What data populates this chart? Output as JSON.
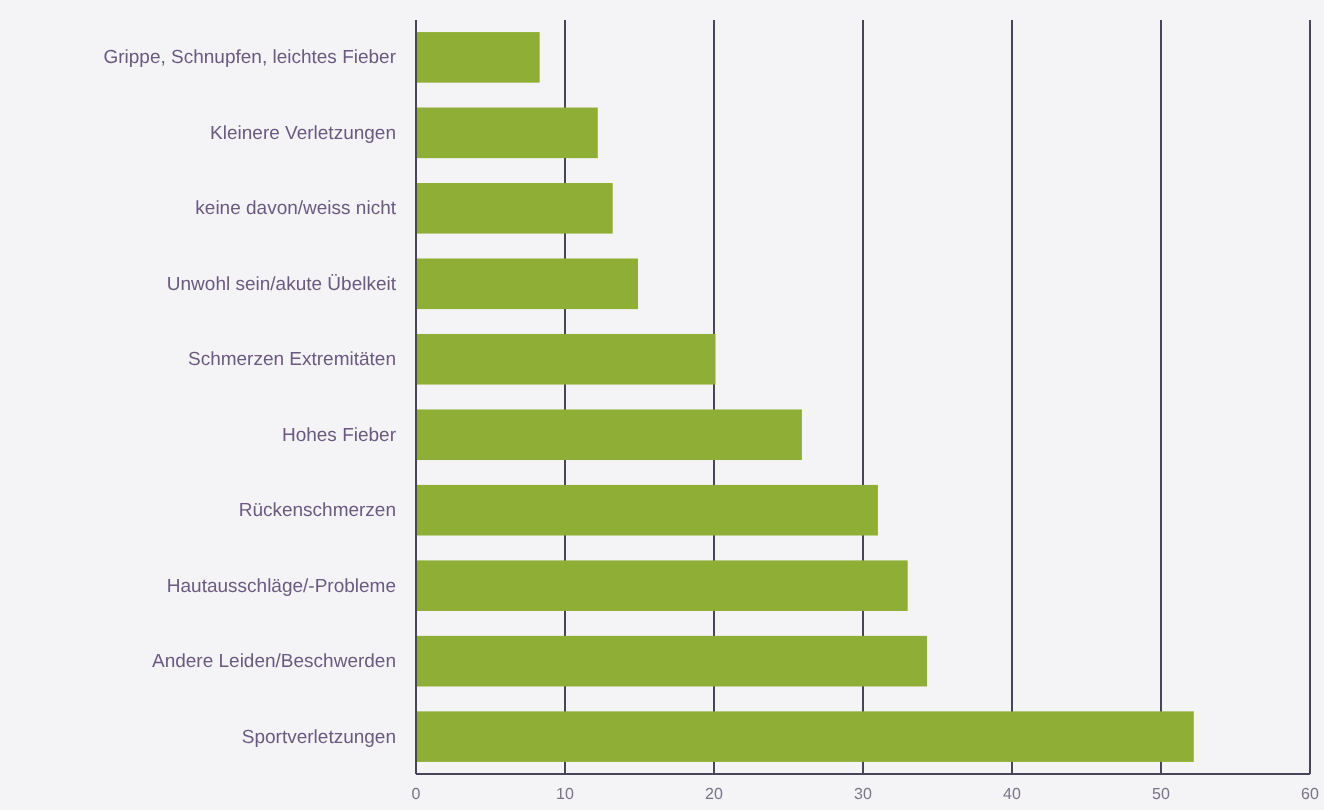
{
  "chart_data": {
    "type": "bar",
    "orientation": "horizontal",
    "categories": [
      "Grippe, Schnupfen, leichtes Fieber",
      "Kleinere Verletzungen",
      "keine davon/weiss nicht",
      "Unwohl sein/akute Übelkeit",
      "Schmerzen Extremitäten",
      "Hohes Fieber",
      "Rückenschmerzen",
      "Hautausschläge/-Probleme",
      "Andere Leiden/Beschwerden",
      "Sportverletzungen"
    ],
    "values": [
      8.3,
      12.2,
      13.2,
      14.9,
      20.1,
      25.9,
      31,
      33,
      34.3,
      52.2
    ],
    "color": "#8fae35",
    "xlim": [
      0,
      60
    ],
    "xticks": [
      0,
      10,
      20,
      30,
      40,
      50,
      60
    ],
    "grid": "x"
  }
}
